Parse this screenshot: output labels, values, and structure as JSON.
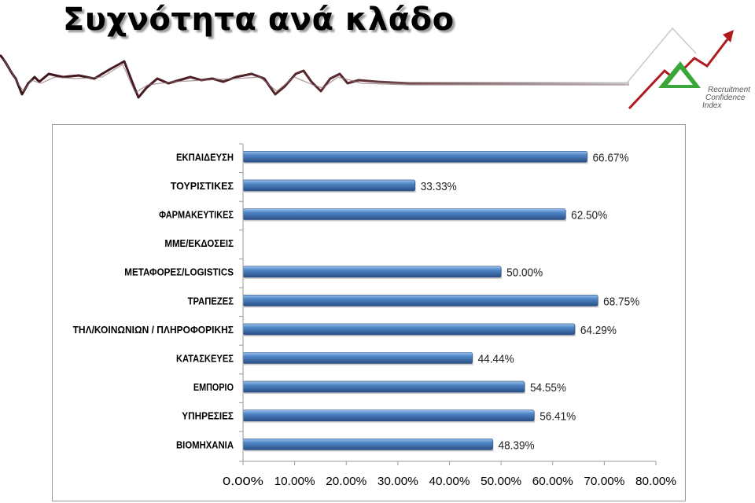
{
  "page": {
    "title": "Συχνότητα ανά κλάδο",
    "logo_text": [
      "Recruitment",
      "Confidence",
      "Index"
    ]
  },
  "colors": {
    "bar_light": "#9cc3ec",
    "bar_mid": "#4f86c6",
    "bar_dark": "#2a4f86",
    "axis": "#9a9a9a",
    "logo_green": "#3aa63a",
    "logo_red": "#b0191e",
    "banner_dark": "#3a1218"
  },
  "chart_data": {
    "type": "bar",
    "orientation": "horizontal",
    "categories": [
      "ΕΚΠΑΙΔΕΥΣΗ",
      "ΤΟΥΡΙΣΤΙΚΕΣ",
      "ΦΑΡΜΑΚΕΥΤΙΚΕΣ",
      "ΜΜΕ/ΕΚΔΟΣΕΙΣ",
      "ΜΕΤΑΦΟΡΕΣ/LOGISTICS",
      "ΤΡΑΠΕΖΕΣ",
      "ΤΗΛ/ΚΟΙΝΩΝΙΩΝ / ΠΛΗΡΟΦΟΡΙΚΗΣ",
      "ΚΑΤΑΣΚΕΥΕΣ",
      "ΕΜΠΟΡΙΟ",
      "ΥΠΗΡΕΣΙΕΣ",
      "ΒΙΟΜΗΧΑΝΙΑ"
    ],
    "values": [
      66.67,
      33.33,
      62.5,
      null,
      50.0,
      68.75,
      64.29,
      44.44,
      54.55,
      56.41,
      48.39
    ],
    "data_labels": [
      "66.67%",
      "33.33%",
      "62.50%",
      "",
      "50.00%",
      "68.75%",
      "64.29%",
      "44.44%",
      "54.55%",
      "56.41%",
      "48.39%"
    ],
    "xlim": [
      0,
      80
    ],
    "xticks": [
      0,
      10,
      20,
      30,
      40,
      50,
      60,
      70,
      80
    ],
    "xtick_labels": [
      "0.00%",
      "10.00%",
      "20.00%",
      "30.00%",
      "40.00%",
      "50.00%",
      "60.00%",
      "70.00%",
      "80.00%"
    ],
    "grid": false,
    "legend": "none"
  }
}
